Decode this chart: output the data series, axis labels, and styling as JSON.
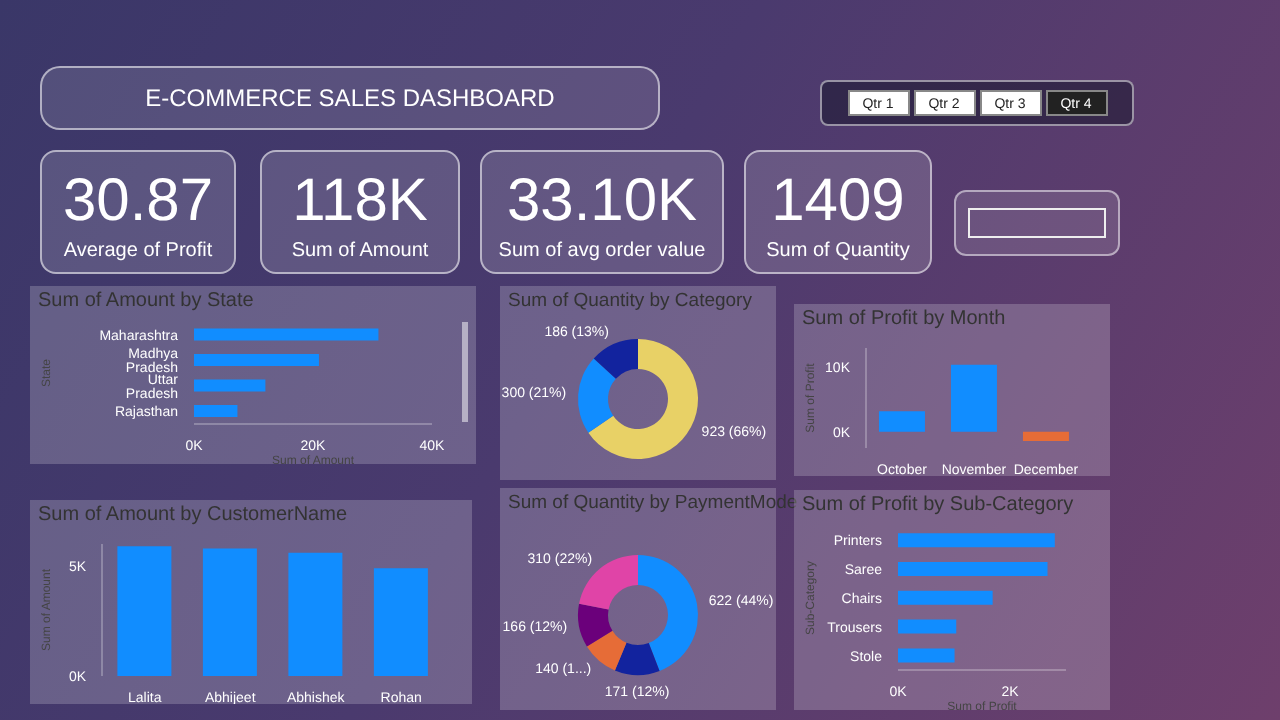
{
  "chart_data": [
    {
      "type": "other",
      "title": "E-COMMERCE SALES DASHBOARD"
    },
    {
      "type": "other",
      "annotations": [
        "Qtr 1",
        "Qtr 2",
        "Qtr 3",
        "Qtr 4"
      ]
    },
    {
      "type": "other",
      "title": "30.87",
      "subtitle": "Average of Profit"
    },
    {
      "type": "other",
      "title": "118K",
      "subtitle": "Sum of Amount"
    },
    {
      "type": "other",
      "title": "33.10K",
      "subtitle": "Sum of avg order value"
    },
    {
      "type": "other",
      "title": "1409",
      "subtitle": "Sum of Quantity"
    },
    {
      "type": "bar",
      "orientation": "horizontal",
      "title": "Sum of Amount by State",
      "xlabel": "Sum of Amount",
      "ylabel": "State",
      "categories": [
        "Maharashtra",
        "Madhya Pradesh",
        "Uttar Pradesh",
        "Rajasthan"
      ],
      "values": [
        31000,
        21000,
        12000,
        7300
      ],
      "color": "#118dff",
      "xlim": [
        0,
        40000
      ],
      "xticks": [
        {
          "value": 0,
          "label": "0K"
        },
        {
          "value": 20000,
          "label": "20K"
        },
        {
          "value": 40000,
          "label": "40K"
        }
      ]
    },
    {
      "type": "donut",
      "title": "Sum of Quantity by Category",
      "categories": [
        null,
        null,
        null
      ],
      "values": [
        923,
        300,
        186
      ],
      "colors": [
        "#e8d166",
        "#118dff",
        "#12239e"
      ],
      "value_labels": [
        "923 (66%)",
        "300 (21%)",
        "186 (13%)"
      ]
    },
    {
      "type": "bar",
      "title": "Sum of Profit by Month",
      "ylabel": "Sum of Profit",
      "categories": [
        "October",
        "November",
        "December"
      ],
      "values": [
        3200,
        10400,
        -1400
      ],
      "colors": [
        "#118dff",
        "#118dff",
        "#e66c37"
      ],
      "ylim": [
        -2500,
        13000
      ],
      "yticks": [
        {
          "value": 0,
          "label": "0K"
        },
        {
          "value": 10000,
          "label": "10K"
        }
      ]
    },
    {
      "type": "bar",
      "title": "Sum of Amount by CustomerName",
      "ylabel": "Sum of Amount",
      "categories": [
        "Lalita",
        "Abhijeet",
        "Abhishek",
        "Rohan"
      ],
      "values": [
        5900,
        5800,
        5600,
        4900
      ],
      "color": "#118dff",
      "ylim": [
        0,
        6000
      ],
      "yticks": [
        {
          "value": 0,
          "label": "0K"
        },
        {
          "value": 5000,
          "label": "5K"
        }
      ]
    },
    {
      "type": "donut",
      "title": "Sum of Quantity by PaymentMode",
      "categories": [
        null,
        null,
        null,
        null,
        null
      ],
      "values": [
        622,
        171,
        140,
        166,
        310
      ],
      "colors": [
        "#118dff",
        "#12239e",
        "#e66c37",
        "#6b007b",
        "#e044a7"
      ],
      "value_labels": [
        "622 (44%)",
        "171 (12%)",
        "140 (1...)",
        "166 (12%)",
        "310 (22%)"
      ]
    },
    {
      "type": "bar",
      "orientation": "horizontal",
      "title": "Sum of Profit by Sub-Category",
      "xlabel": "Sum of Profit",
      "ylabel": "Sub-Category",
      "categories": [
        "Printers",
        "Saree",
        "Chairs",
        "Trousers",
        "Stole"
      ],
      "values": [
        2800,
        2670,
        1690,
        1040,
        1010
      ],
      "color": "#118dff",
      "xlim": [
        0,
        3000
      ],
      "xticks": [
        {
          "value": 0,
          "label": "0K"
        },
        {
          "value": 2000,
          "label": "2K"
        }
      ]
    }
  ]
}
